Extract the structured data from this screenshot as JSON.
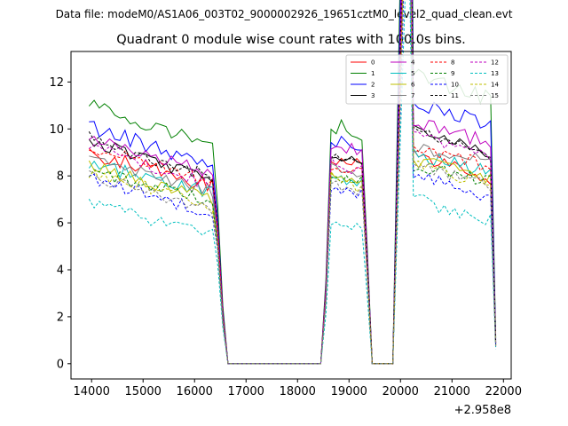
{
  "chart_data": {
    "type": "line",
    "suptitle": "Data file: modeM0/AS1A06_003T02_9000002926_19651cztM0_level2_quad_clean.evt",
    "title": "Quadrant 0 module wise count rates with 100.0s bins.",
    "xlabel": "",
    "ylabel": "",
    "x_offset_label": "+2.958e8",
    "xlim": [
      13600,
      22150
    ],
    "ylim": [
      -0.65,
      13.3
    ],
    "xticks": [
      14000,
      15000,
      16000,
      17000,
      18000,
      19000,
      20000,
      21000,
      22000
    ],
    "yticks": [
      0,
      2,
      4,
      6,
      8,
      10,
      12
    ],
    "legend_position": "top-right",
    "segments": [
      {
        "start": 13950,
        "n_active": 25,
        "drop": [
          5.5,
          2.0
        ],
        "n_zero": 19
      },
      {
        "start": 18550,
        "n_active": 7,
        "drop": [
          4.5
        ],
        "n_zero": 5,
        "rise": [
          0.35
        ]
      },
      {
        "start": 20150,
        "n_active": 16,
        "drop": [
          0.8
        ],
        "n_zero": 0,
        "rise": [
          2.8
        ]
      }
    ],
    "series": [
      {
        "name": "0",
        "color": "#ff0000",
        "dashed": false,
        "levels": [
          9.0,
          8.7,
          8.8
        ],
        "slope": -0.06,
        "noise": 0.35
      },
      {
        "name": "1",
        "color": "#008000",
        "dashed": false,
        "levels": [
          11.0,
          10.2,
          12.3
        ],
        "slope": -0.07,
        "noise": 0.35
      },
      {
        "name": "2",
        "color": "#0000ff",
        "dashed": false,
        "levels": [
          10.1,
          9.5,
          11.2
        ],
        "slope": -0.07,
        "noise": 0.35
      },
      {
        "name": "3",
        "color": "#000000",
        "dashed": false,
        "levels": [
          9.5,
          9.0,
          10.0
        ],
        "slope": -0.07,
        "noise": 0.3
      },
      {
        "name": "4",
        "color": "#bf00bf",
        "dashed": false,
        "levels": [
          9.6,
          9.4,
          10.3
        ],
        "slope": -0.06,
        "noise": 0.3
      },
      {
        "name": "5",
        "color": "#00bfbf",
        "dashed": false,
        "levels": [
          8.5,
          8.0,
          8.9
        ],
        "slope": -0.05,
        "noise": 0.3
      },
      {
        "name": "6",
        "color": "#bfbf00",
        "dashed": false,
        "levels": [
          8.4,
          8.1,
          8.7
        ],
        "slope": -0.06,
        "noise": 0.3
      },
      {
        "name": "7",
        "color": "#808080",
        "dashed": false,
        "levels": [
          8.6,
          8.3,
          9.3
        ],
        "slope": -0.05,
        "noise": 0.3
      },
      {
        "name": "8",
        "color": "#ff0000",
        "dashed": true,
        "levels": [
          9.2,
          8.5,
          9.3
        ],
        "slope": -0.06,
        "noise": 0.3
      },
      {
        "name": "9",
        "color": "#008000",
        "dashed": true,
        "levels": [
          8.2,
          8.0,
          8.5
        ],
        "slope": -0.05,
        "noise": 0.3
      },
      {
        "name": "10",
        "color": "#0000ff",
        "dashed": true,
        "levels": [
          7.9,
          7.6,
          8.0
        ],
        "slope": -0.06,
        "noise": 0.3
      },
      {
        "name": "11",
        "color": "#000000",
        "dashed": true,
        "levels": [
          9.6,
          8.8,
          9.9
        ],
        "slope": -0.07,
        "noise": 0.3
      },
      {
        "name": "12",
        "color": "#bf00bf",
        "dashed": true,
        "levels": [
          9.3,
          8.6,
          9.8
        ],
        "slope": -0.07,
        "noise": 0.3
      },
      {
        "name": "13",
        "color": "#00bfbf",
        "dashed": true,
        "levels": [
          6.9,
          6.0,
          7.0
        ],
        "slope": -0.06,
        "noise": 0.3
      },
      {
        "name": "14",
        "color": "#bfbf00",
        "dashed": true,
        "levels": [
          8.2,
          7.9,
          8.5
        ],
        "slope": -0.06,
        "noise": 0.3
      },
      {
        "name": "15",
        "color": "#808080",
        "dashed": true,
        "levels": [
          8.0,
          7.6,
          8.4
        ],
        "slope": -0.06,
        "noise": 0.3
      }
    ]
  }
}
